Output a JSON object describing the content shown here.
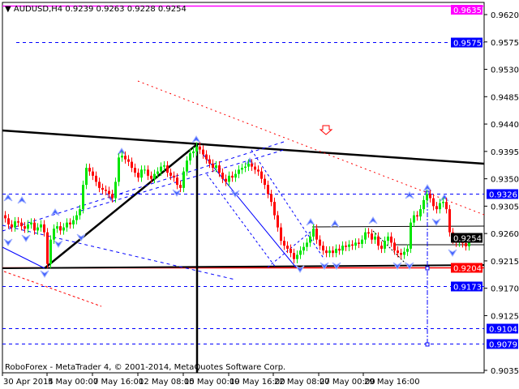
{
  "header": {
    "symbol": "AUDUSD,H4",
    "ohlc": "0.9239 0.9263 0.9228 0.9254"
  },
  "footer": {
    "copyright": "RoboForex - MetaTrader 4, © 2001-2014, MetaQuotes Software Corp."
  },
  "colors": {
    "bull": "#00e600",
    "bear": "#ff0000",
    "level_blue": "#0000ff",
    "level_red": "#ff0000",
    "level_magenta": "#ff00ff",
    "bid": "#000000"
  },
  "chart_data": {
    "type": "candlestick",
    "symbol": "AUDUSD",
    "timeframe": "H4",
    "ylim": [
      0.9035,
      0.964
    ],
    "y_ticks": [
      "0.9620",
      "0.9575",
      "0.9530",
      "0.9485",
      "0.9440",
      "0.9395",
      "0.9350",
      "0.9305",
      "0.9260",
      "0.9215",
      "0.9170",
      "0.9125",
      "0.9035"
    ],
    "x_ticks": [
      "30 Apr 2014",
      "5 May 00:00",
      "7 May 16:00",
      "12 May 08:00",
      "15 May 00:00",
      "19 May 16:00",
      "22 May 08:00",
      "27 May 00:00",
      "29 May 16:00"
    ],
    "close": [
      0.9285,
      0.9275,
      0.927,
      0.928,
      0.9278,
      0.9272,
      0.9268,
      0.9275,
      0.9278,
      0.9265,
      0.927,
      0.9275,
      0.9262,
      0.921,
      0.925,
      0.9268,
      0.9272,
      0.9265,
      0.927,
      0.9278,
      0.9275,
      0.9282,
      0.929,
      0.93,
      0.934,
      0.9368,
      0.9362,
      0.9355,
      0.9345,
      0.9335,
      0.9332,
      0.933,
      0.9325,
      0.9318,
      0.9345,
      0.9385,
      0.9388,
      0.9382,
      0.9378,
      0.9368,
      0.936,
      0.9352,
      0.9365,
      0.9365,
      0.9355,
      0.935,
      0.9358,
      0.9362,
      0.937,
      0.9372,
      0.936,
      0.9355,
      0.9352,
      0.934,
      0.9335,
      0.9362,
      0.938,
      0.9392,
      0.9395,
      0.9403,
      0.9398,
      0.939,
      0.9382,
      0.9375,
      0.9368,
      0.9372,
      0.936,
      0.935,
      0.9345,
      0.9355,
      0.9352,
      0.9358,
      0.9365,
      0.9368,
      0.937,
      0.9375,
      0.937,
      0.9365,
      0.9362,
      0.935,
      0.934,
      0.9325,
      0.9312,
      0.929,
      0.927,
      0.9248,
      0.924,
      0.9235,
      0.9228,
      0.9218,
      0.9225,
      0.9232,
      0.9238,
      0.9245,
      0.9255,
      0.9268,
      0.925,
      0.924,
      0.9232,
      0.9228,
      0.9232,
      0.9228,
      0.9235,
      0.9232,
      0.924,
      0.9238,
      0.9242,
      0.924,
      0.9245,
      0.9243,
      0.925,
      0.9262,
      0.926,
      0.925,
      0.9255,
      0.924,
      0.9235,
      0.9248,
      0.9255,
      0.9245,
      0.9232,
      0.9228,
      0.9225,
      0.923,
      0.9235,
      0.9278,
      0.929,
      0.9288,
      0.93,
      0.9315,
      0.9325,
      0.9318,
      0.9305,
      0.93,
      0.931,
      0.9312,
      0.93,
      0.9262,
      0.925,
      0.9245,
      0.925,
      0.9244,
      0.9239,
      0.9254
    ],
    "levels": [
      {
        "price": "0.9635",
        "color": "#ff00ff",
        "style": "solid"
      },
      {
        "price": "0.9575",
        "color": "#0000ff",
        "style": "dashed"
      },
      {
        "price": "0.9326",
        "color": "#0000ff",
        "style": "dashed"
      },
      {
        "price": "0.9254",
        "color": "#000000",
        "style": "bid"
      },
      {
        "price": "0.9204",
        "color": "#ff0000",
        "style": "solid"
      },
      {
        "price": "0.9173",
        "color": "#0000ff",
        "style": "dashed"
      },
      {
        "price": "0.9104",
        "color": "#0000ff",
        "style": "dashed"
      },
      {
        "price": "0.9079",
        "color": "#0000ff",
        "style": "dashed"
      }
    ]
  }
}
